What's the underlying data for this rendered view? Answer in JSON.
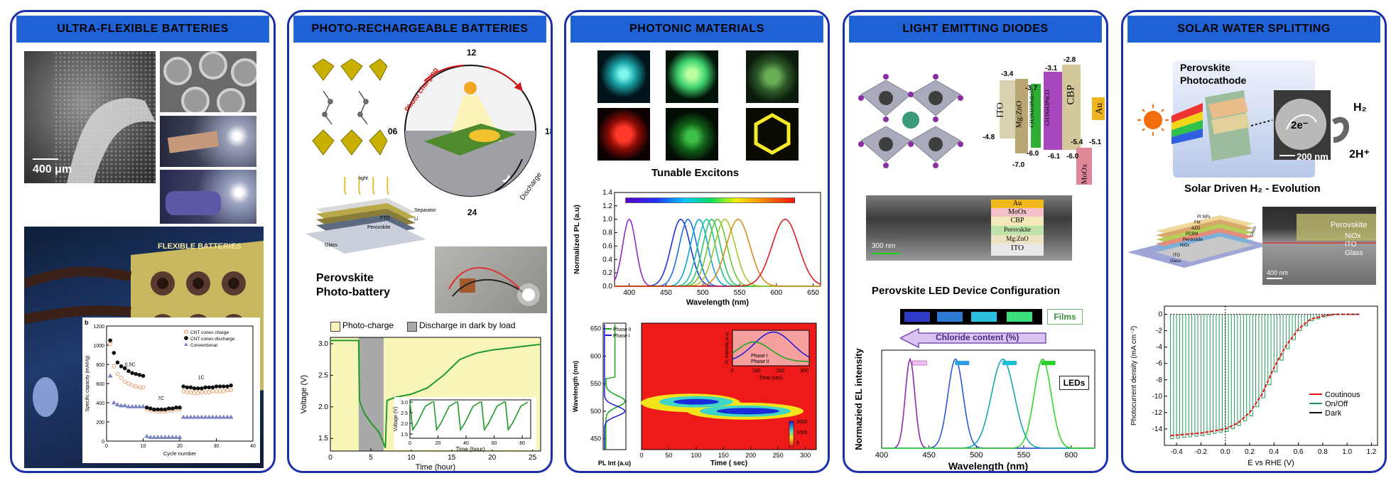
{
  "panels": [
    {
      "title": "ULTRA-FLEXIBLE BATTERIES"
    },
    {
      "title": "PHOTO-RECHARGEABLE BATTERIES"
    },
    {
      "title": "PHOTONIC MATERIALS"
    },
    {
      "title": "LIGHT EMITTING DIODES"
    },
    {
      "title": "SOLAR WATER SPLITTING"
    }
  ],
  "flex": {
    "scale_bar": "400 μm",
    "poster_title": "FLEXIBLE BATTERIES",
    "inset_label": "b",
    "legend": [
      "CNT cones charge",
      "CNT cones discharge",
      "Conventional"
    ],
    "rate_labels": [
      "0.5C",
      "7C",
      "1C"
    ],
    "xlabel": "Cycle number",
    "ylabel": "Specific capacity (mAh/g)",
    "xticks": [
      "0",
      "10",
      "20",
      "30",
      "40"
    ],
    "yticks": [
      "0",
      "200",
      "400",
      "600",
      "800",
      "1000",
      "1200"
    ]
  },
  "photo": {
    "clock": [
      "12",
      "18",
      "24",
      "06"
    ],
    "arc_charge": "Photo charging",
    "arc_discharge": "Discharge",
    "layers": [
      "FTO",
      "Perovskite",
      "Separator",
      "Li",
      "Glass"
    ],
    "light": "light",
    "caption_line1": "Perovskite",
    "caption_line2": "Photo-battery",
    "legend_charge": "Photo-charge",
    "legend_discharge": "Discharge in dark by load",
    "xlabel": "Time (hour)",
    "ylabel": "Voltage (V)",
    "xticks": [
      "0",
      "5",
      "10",
      "15",
      "20",
      "25"
    ],
    "yticks": [
      "1.5",
      "2.0",
      "2.5",
      "3.0"
    ],
    "inset_xlabel": "Time (hour)",
    "inset_ylabel": "Voltage (V)",
    "inset_xticks": [
      "0",
      "20",
      "40",
      "60",
      "80"
    ],
    "inset_yticks": [
      "1.5",
      "2.0",
      "2.5",
      "3.0"
    ]
  },
  "photonic": {
    "chart_title": "Tunable Excitons",
    "xlabel": "Wavelength (nm)",
    "ylabel": "Normalized PL (a.u)",
    "xticks": [
      "400",
      "450",
      "500",
      "550",
      "600",
      "650"
    ],
    "yticks": [
      "0.0",
      "0.2",
      "0.4",
      "0.6",
      "0.8",
      "1.0",
      "1.2",
      "1.4"
    ],
    "side_legend": [
      "Phase II",
      "Phase I"
    ],
    "side_ylabel": "Wavelength (nm)",
    "side_xlabel": "PL Int (a.u)",
    "side_yticks": [
      "450",
      "500",
      "550",
      "600",
      "650"
    ],
    "map_xlabel": "Time ( sec)",
    "map_xticks": [
      "0",
      "50",
      "100",
      "150",
      "200",
      "250",
      "300"
    ],
    "colorbar_ticks": [
      "2000",
      "1000",
      "0"
    ],
    "inset_xlabel": "Time (sec)",
    "inset_ylabel": "PL Intensity (a.u)",
    "inset_legend": [
      "Phase I",
      "Phase II"
    ],
    "inset_xticks": [
      "0",
      "100",
      "200",
      "300"
    ]
  },
  "led": {
    "energy_labels": [
      "-3.4",
      "-3.7",
      "-3.1",
      "-2.8",
      "-4.8",
      "-6.0",
      "-7.0",
      "-6.1",
      "-6.0",
      "-5.4",
      "-5.1"
    ],
    "layers": [
      "ITO",
      "Mg:ZnO",
      "CH3NH3PbBr3",
      "CH3NH3PbCl3",
      "CBP",
      "MoOx",
      "Au"
    ],
    "stack": [
      "Au",
      "MoOx",
      "CBP",
      "Perovskite",
      "Mg:ZnO",
      "ITO"
    ],
    "scale_bar": "300 nm",
    "caption": "Perovskite  LED Device Configuration",
    "films": "Films",
    "chloride": "Chloride content (%)",
    "leds": "LEDs",
    "ylabel": "Normazied EL intensity",
    "xlabel": "Wavelength (nm)",
    "xticks": [
      "400",
      "450",
      "500",
      "550",
      "600"
    ]
  },
  "solar": {
    "photocathode_line1": "Perovskite",
    "photocathode_line2": "Photocathode",
    "electron": "2e⁻",
    "h2": "H₂",
    "h_plus": "2H⁺",
    "sem_scale": "200 nm",
    "caption": "Solar Driven H₂ - Evolution",
    "stack_layers": [
      "Pt NPs",
      "FM",
      "AZO",
      "PCBM",
      "Perovskite",
      "NiOx",
      "ITO",
      "Glass"
    ],
    "stack_side": "Glass",
    "sem_labels": [
      "Perovskite",
      "NiOx",
      "ITO",
      "Glass"
    ],
    "sem2_scale": "400 nm",
    "ylabel": "Photocurrent density (mA cm⁻²)",
    "xlabel": "E vs RHE (V)",
    "xticks": [
      "-0.4",
      "-0.2",
      "0.0",
      "0.2",
      "0.4",
      "0.6",
      "0.8",
      "1.0",
      "1.2"
    ],
    "yticks": [
      "0",
      "-2",
      "-4",
      "-6",
      "-8",
      "-10",
      "-12",
      "-14"
    ],
    "legend": [
      "Coutinous",
      "On/Off",
      "Dark"
    ]
  },
  "chart_data": [
    {
      "type": "scatter",
      "xlabel": "Cycle number",
      "ylabel": "Specific capacity (mAh/g)",
      "xlim": [
        0,
        40
      ],
      "ylim": [
        0,
        1200
      ],
      "series": [
        {
          "name": "CNT cones charge",
          "x": [
            1,
            2,
            3,
            4,
            5,
            6,
            7,
            8,
            9,
            10,
            11,
            12,
            13,
            14,
            15,
            16,
            17,
            18,
            19,
            20,
            21,
            22,
            23,
            24,
            25,
            26,
            27,
            28,
            29,
            30,
            31,
            32,
            33,
            34
          ],
          "y": [
            1010,
            780,
            700,
            660,
            620,
            600,
            580,
            570,
            560,
            560,
            330,
            320,
            320,
            310,
            310,
            310,
            320,
            320,
            330,
            330,
            520,
            510,
            510,
            500,
            500,
            510,
            510,
            510,
            520,
            520,
            520,
            520,
            530,
            530
          ]
        },
        {
          "name": "CNT cones discharge",
          "x": [
            1,
            2,
            3,
            4,
            5,
            6,
            7,
            8,
            9,
            10,
            11,
            12,
            13,
            14,
            15,
            16,
            17,
            18,
            19,
            20,
            21,
            22,
            23,
            24,
            25,
            26,
            27,
            28,
            29,
            30,
            31,
            32,
            33,
            34
          ],
          "y": [
            1050,
            920,
            820,
            780,
            760,
            730,
            710,
            700,
            690,
            680,
            350,
            340,
            330,
            330,
            330,
            330,
            340,
            340,
            350,
            350,
            570,
            560,
            560,
            550,
            550,
            550,
            560,
            560,
            560,
            570,
            570,
            570,
            570,
            580
          ]
        },
        {
          "name": "Conventional",
          "x": [
            1,
            2,
            3,
            4,
            5,
            6,
            7,
            8,
            9,
            10,
            11,
            12,
            13,
            14,
            15,
            16,
            17,
            18,
            19,
            20,
            21,
            22,
            23,
            24,
            25,
            26,
            27,
            28,
            29,
            30,
            31,
            32,
            33,
            34
          ],
          "y": [
            680,
            400,
            380,
            370,
            370,
            360,
            360,
            360,
            360,
            360,
            50,
            40,
            40,
            40,
            40,
            40,
            40,
            40,
            40,
            40,
            250,
            250,
            250,
            250,
            250,
            250,
            250,
            250,
            250,
            250,
            250,
            250,
            250,
            250
          ]
        }
      ]
    },
    {
      "type": "line",
      "xlabel": "Time (hour)",
      "ylabel": "Voltage (V)",
      "xlim": [
        0,
        26
      ],
      "ylim": [
        1.3,
        3.1
      ],
      "series": [
        {
          "name": "",
          "x": [
            0,
            3.5,
            3.6,
            4.2,
            5,
            6,
            6.5,
            6.8,
            7,
            8,
            10,
            12,
            14,
            16,
            18,
            20,
            22,
            24,
            26
          ],
          "y": [
            3.05,
            3.05,
            2.1,
            1.9,
            1.75,
            1.6,
            1.45,
            1.35,
            2.1,
            2.15,
            2.2,
            2.3,
            2.5,
            2.75,
            2.85,
            2.9,
            2.93,
            2.96,
            2.99
          ]
        }
      ]
    },
    {
      "type": "line",
      "title": "Tunable Excitons",
      "xlabel": "Wavelength (nm)",
      "ylabel": "Normalized PL (a.u)",
      "xlim": [
        380,
        660
      ],
      "ylim": [
        0,
        1.4
      ],
      "peaks": [
        400,
        470,
        480,
        495,
        505,
        512,
        520,
        530,
        548,
        612
      ]
    },
    {
      "type": "line",
      "xlabel": "Wavelength (nm)",
      "ylabel": "Normazied EL intensity",
      "xlim": [
        400,
        625
      ],
      "ylim": [
        0,
        1.1
      ],
      "peaks": [
        430,
        478,
        528,
        570
      ]
    },
    {
      "type": "line",
      "xlabel": "E vs RHE (V)",
      "ylabel": "Photocurrent density (mA cm⁻²)",
      "xlim": [
        -0.5,
        1.25
      ],
      "ylim": [
        -16,
        1
      ],
      "series": [
        {
          "name": "Coutinous",
          "x": [
            -0.45,
            -0.2,
            0,
            0.1,
            0.2,
            0.3,
            0.4,
            0.5,
            0.6,
            0.7,
            0.8,
            0.9,
            1.0,
            1.1
          ],
          "y": [
            -14.8,
            -14.5,
            -14,
            -13.3,
            -12,
            -9.8,
            -6.5,
            -3.8,
            -1.8,
            -0.6,
            -0.2,
            0,
            0,
            0
          ]
        },
        {
          "name": "On/Off",
          "x": [
            -0.45,
            -0.2,
            0,
            0.1,
            0.2,
            0.3,
            0.4,
            0.5,
            0.6,
            0.7,
            0.8,
            0.9,
            1.0,
            1.1
          ],
          "y": [
            -15.2,
            -14.8,
            -14.3,
            -13.6,
            -12.4,
            -10.2,
            -7,
            -4.2,
            -2,
            -0.8,
            -0.3,
            0,
            0,
            0
          ]
        },
        {
          "name": "Dark",
          "x": [
            -0.45,
            1.1
          ],
          "y": [
            0,
            0
          ]
        }
      ]
    }
  ]
}
